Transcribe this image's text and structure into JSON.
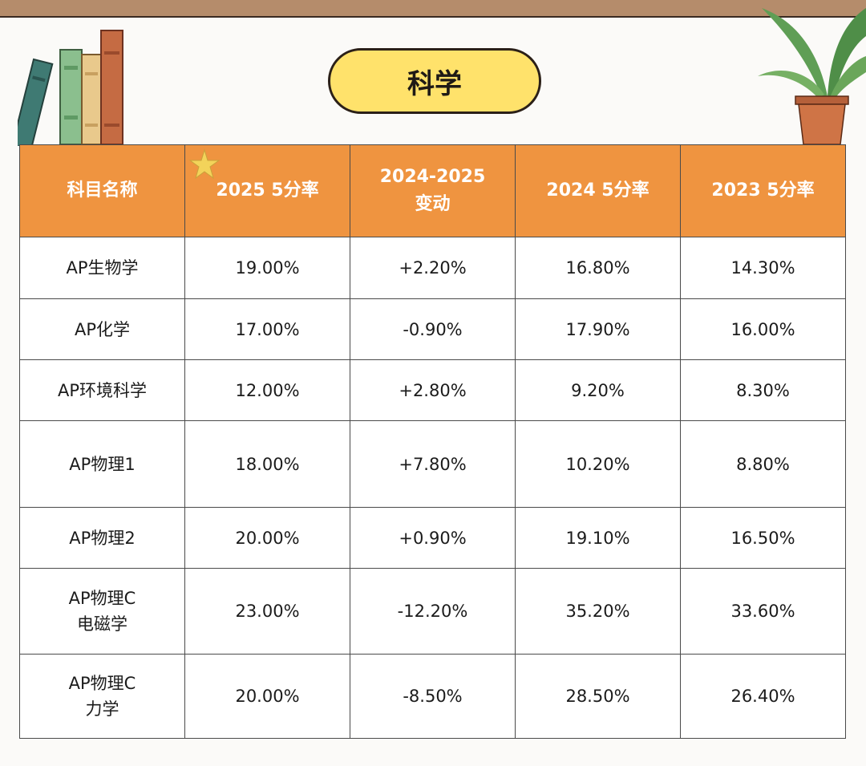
{
  "title": "科学",
  "table": {
    "headers": [
      "科目名称",
      "2025 5分率",
      "2024-2025\n变动",
      "2024 5分率",
      "2023 5分率"
    ],
    "rows": [
      {
        "subject": "AP生物学",
        "rate_2025": "19.00%",
        "change": "+2.20%",
        "rate_2024": "16.80%",
        "rate_2023": "14.30%",
        "trend": "up"
      },
      {
        "subject": "AP化学",
        "rate_2025": "17.00%",
        "change": "-0.90%",
        "rate_2024": "17.90%",
        "rate_2023": "16.00%",
        "trend": "down"
      },
      {
        "subject": "AP环境科学",
        "rate_2025": "12.00%",
        "change": "+2.80%",
        "rate_2024": "9.20%",
        "rate_2023": "8.30%",
        "trend": "up"
      },
      {
        "subject": "AP物理1",
        "rate_2025": "18.00%",
        "change": "+7.80%",
        "rate_2024": "10.20%",
        "rate_2023": "8.80%",
        "trend": "up"
      },
      {
        "subject": "AP物理2",
        "rate_2025": "20.00%",
        "change": "+0.90%",
        "rate_2024": "19.10%",
        "rate_2023": "16.50%",
        "trend": "up"
      },
      {
        "subject": "AP物理C\n电磁学",
        "rate_2025": "23.00%",
        "change": "-12.20%",
        "rate_2024": "35.20%",
        "rate_2023": "33.60%",
        "trend": "down"
      },
      {
        "subject": "AP物理C\n力学",
        "rate_2025": "20.00%",
        "change": "-8.50%",
        "rate_2024": "28.50%",
        "rate_2023": "26.40%",
        "trend": "down"
      }
    ]
  },
  "colors": {
    "header_bg": "#ef9440",
    "title_pill": "#ffe26b",
    "subject_cell": "#fdefd5",
    "increase_cell": "#eaf8d8",
    "decrease_cell": "#f7d0cf"
  },
  "icons": [
    "books-illustration",
    "potted-plant-illustration",
    "star-icon"
  ]
}
